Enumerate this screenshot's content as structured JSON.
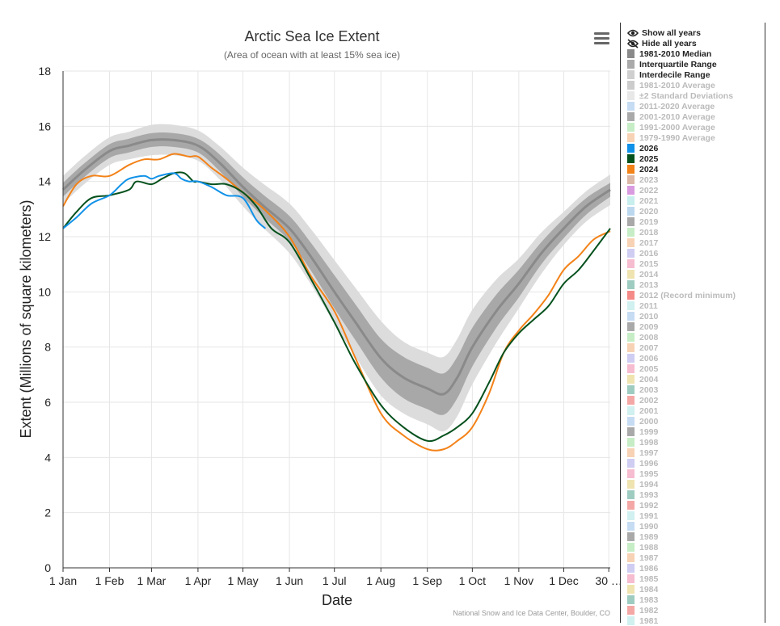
{
  "chart_data": {
    "type": "line",
    "title": "Arctic Sea Ice Extent",
    "subtitle": "(Area of ocean with at least 15% sea ice)",
    "xlabel": "Date",
    "ylabel": "Extent (Millions of square kilometers)",
    "credit": "National Snow and Ice Data Center, Boulder, CO",
    "ylim": [
      0,
      18
    ],
    "xlim": [
      1,
      366
    ],
    "grid": true,
    "legend_position": "right",
    "y_ticks": [
      "0",
      "2",
      "4",
      "6",
      "8",
      "10",
      "12",
      "14",
      "16",
      "18"
    ],
    "x_ticks": [
      {
        "day": 1,
        "label": "1 Jan"
      },
      {
        "day": 32,
        "label": "1 Feb"
      },
      {
        "day": 60,
        "label": "1 Mar"
      },
      {
        "day": 91,
        "label": "1 Apr"
      },
      {
        "day": 121,
        "label": "1 May"
      },
      {
        "day": 152,
        "label": "1 Jun"
      },
      {
        "day": 182,
        "label": "1 Jul"
      },
      {
        "day": 213,
        "label": "1 Aug"
      },
      {
        "day": 244,
        "label": "1 Sep"
      },
      {
        "day": 274,
        "label": "1 Oct"
      },
      {
        "day": 305,
        "label": "1 Nov"
      },
      {
        "day": 335,
        "label": "1 Dec"
      },
      {
        "day": 365,
        "label": "30 …"
      }
    ],
    "median_1981_2010": {
      "x": [
        1,
        15,
        32,
        45,
        60,
        75,
        91,
        105,
        121,
        135,
        152,
        166,
        182,
        196,
        213,
        228,
        244,
        255,
        264,
        274,
        290,
        305,
        320,
        335,
        350,
        366
      ],
      "y": [
        13.7,
        14.4,
        15.1,
        15.3,
        15.5,
        15.5,
        15.3,
        14.7,
        13.8,
        13.1,
        12.3,
        11.3,
        10.0,
        8.9,
        7.6,
        6.9,
        6.5,
        6.3,
        6.9,
        8.0,
        9.3,
        10.3,
        11.4,
        12.3,
        13.1,
        13.7
      ]
    },
    "interquartile_halfwidth": [
      0.25,
      0.25,
      0.25,
      0.25,
      0.25,
      0.25,
      0.25,
      0.3,
      0.35,
      0.4,
      0.45,
      0.5,
      0.6,
      0.65,
      0.7,
      0.75,
      0.75,
      0.75,
      0.75,
      0.7,
      0.6,
      0.5,
      0.4,
      0.35,
      0.3,
      0.25
    ],
    "interdecile_halfwidth": [
      0.5,
      0.5,
      0.5,
      0.5,
      0.55,
      0.55,
      0.55,
      0.6,
      0.7,
      0.8,
      0.9,
      1.0,
      1.15,
      1.25,
      1.35,
      1.3,
      1.3,
      1.35,
      1.4,
      1.35,
      1.15,
      0.9,
      0.75,
      0.6,
      0.55,
      0.55
    ],
    "series": [
      {
        "name": "2024",
        "color": "#f38218",
        "x": [
          1,
          10,
          20,
          32,
          45,
          55,
          65,
          75,
          85,
          91,
          100,
          110,
          121,
          135,
          152,
          166,
          182,
          196,
          213,
          228,
          244,
          255,
          264,
          274,
          285,
          295,
          305,
          315,
          325,
          335,
          345,
          355,
          366
        ],
        "y": [
          13.1,
          13.9,
          14.2,
          14.2,
          14.6,
          14.8,
          14.8,
          15.0,
          14.9,
          14.9,
          14.5,
          14.1,
          13.6,
          13.0,
          12.0,
          10.6,
          9.3,
          7.6,
          5.6,
          4.8,
          4.3,
          4.3,
          4.6,
          5.1,
          6.3,
          7.8,
          8.6,
          9.2,
          9.9,
          10.8,
          11.3,
          11.9,
          12.2
        ]
      },
      {
        "name": "2025",
        "color": "#05511d",
        "x": [
          1,
          10,
          20,
          32,
          45,
          50,
          60,
          67,
          75,
          82,
          88,
          91,
          100,
          110,
          121,
          130,
          140,
          152,
          166,
          182,
          196,
          213,
          228,
          244,
          255,
          264,
          274,
          285,
          295,
          305,
          315,
          325,
          335,
          345,
          355,
          366
        ],
        "y": [
          12.3,
          12.9,
          13.4,
          13.5,
          13.7,
          14.0,
          13.9,
          14.1,
          14.3,
          14.3,
          14.0,
          14.0,
          13.9,
          13.9,
          13.6,
          13.1,
          12.3,
          11.8,
          10.5,
          8.9,
          7.4,
          5.9,
          5.1,
          4.6,
          4.8,
          5.1,
          5.6,
          6.7,
          7.8,
          8.5,
          9.0,
          9.5,
          10.3,
          10.8,
          11.5,
          12.3
        ]
      },
      {
        "name": "2026",
        "color": "#1192e8",
        "x": [
          1,
          10,
          20,
          32,
          40,
          45,
          55,
          60,
          65,
          75,
          80,
          85,
          91,
          100,
          110,
          121,
          130,
          136
        ],
        "y": [
          12.3,
          12.7,
          13.2,
          13.5,
          13.9,
          14.1,
          14.2,
          14.1,
          14.2,
          14.3,
          14.1,
          14.0,
          14.0,
          13.8,
          13.5,
          13.4,
          12.6,
          12.3
        ]
      }
    ]
  },
  "legend": {
    "actions": [
      {
        "label": "Show all years",
        "icon": "eye-icon"
      },
      {
        "label": "Hide all years",
        "icon": "eye-off-icon"
      }
    ],
    "items": [
      {
        "label": "1981-2010 Median",
        "color": "#8a8a8a",
        "text_color": "#222222"
      },
      {
        "label": "Interquartile Range",
        "color": "#aaaaaa",
        "text_color": "#222222"
      },
      {
        "label": "Interdecile Range",
        "color": "#cfcfcf",
        "text_color": "#222222"
      },
      {
        "label": "1981-2010 Average",
        "color": "#cccccc",
        "text_color": "#bbbbbb"
      },
      {
        "label": "±2 Standard Deviations",
        "color": "#e8e8e8",
        "text_color": "#bbbbbb"
      },
      {
        "label": "2011-2020 Average",
        "color": "#c6dcf3",
        "text_color": "#bbbbbb"
      },
      {
        "label": "2001-2010 Average",
        "color": "#a9a9a9",
        "text_color": "#bbbbbb"
      },
      {
        "label": "1991-2000 Average",
        "color": "#c6edc6",
        "text_color": "#bbbbbb"
      },
      {
        "label": "1979-1990 Average",
        "color": "#f7d2b4",
        "text_color": "#bbbbbb"
      },
      {
        "label": "2026",
        "color": "#1192e8",
        "text_color": "#222222"
      },
      {
        "label": "2025",
        "color": "#05511d",
        "text_color": "#222222"
      },
      {
        "label": "2024",
        "color": "#f38218",
        "text_color": "#222222"
      },
      {
        "label": "2023",
        "color": "#dbb8a8",
        "text_color": "#bbbbbb"
      },
      {
        "label": "2022",
        "color": "#d99be0",
        "text_color": "#bbbbbb"
      },
      {
        "label": "2021",
        "color": "#c8eeee",
        "text_color": "#bbbbbb"
      },
      {
        "label": "2020",
        "color": "#bcd8ef",
        "text_color": "#bbbbbb"
      },
      {
        "label": "2019",
        "color": "#a9a9a9",
        "text_color": "#bbbbbb"
      },
      {
        "label": "2018",
        "color": "#c6edc6",
        "text_color": "#bbbbbb"
      },
      {
        "label": "2017",
        "color": "#f7d2b4",
        "text_color": "#bbbbbb"
      },
      {
        "label": "2016",
        "color": "#cfcdf2",
        "text_color": "#bbbbbb"
      },
      {
        "label": "2015",
        "color": "#f6bcd0",
        "text_color": "#bbbbbb"
      },
      {
        "label": "2014",
        "color": "#efe3b0",
        "text_color": "#bbbbbb"
      },
      {
        "label": "2013",
        "color": "#9fccc0",
        "text_color": "#bbbbbb"
      },
      {
        "label": "2012 (Record minimum)",
        "color": "#f48b88",
        "text_color": "#bbbbbb"
      },
      {
        "label": "2011",
        "color": "#d1f0f0",
        "text_color": "#bbbbbb"
      },
      {
        "label": "2010",
        "color": "#c6dcf3",
        "text_color": "#bbbbbb"
      },
      {
        "label": "2009",
        "color": "#a9a9a9",
        "text_color": "#bbbbbb"
      },
      {
        "label": "2008",
        "color": "#c6edc6",
        "text_color": "#bbbbbb"
      },
      {
        "label": "2007",
        "color": "#f7d2b4",
        "text_color": "#bbbbbb"
      },
      {
        "label": "2006",
        "color": "#cfcdf2",
        "text_color": "#bbbbbb"
      },
      {
        "label": "2005",
        "color": "#f6bcd0",
        "text_color": "#bbbbbb"
      },
      {
        "label": "2004",
        "color": "#efe3b0",
        "text_color": "#bbbbbb"
      },
      {
        "label": "2003",
        "color": "#9fccc0",
        "text_color": "#bbbbbb"
      },
      {
        "label": "2002",
        "color": "#f4a8a6",
        "text_color": "#bbbbbb"
      },
      {
        "label": "2001",
        "color": "#d1f0f0",
        "text_color": "#bbbbbb"
      },
      {
        "label": "2000",
        "color": "#c6dcf3",
        "text_color": "#bbbbbb"
      },
      {
        "label": "1999",
        "color": "#a9a9a9",
        "text_color": "#bbbbbb"
      },
      {
        "label": "1998",
        "color": "#c6edc6",
        "text_color": "#bbbbbb"
      },
      {
        "label": "1997",
        "color": "#f7d2b4",
        "text_color": "#bbbbbb"
      },
      {
        "label": "1996",
        "color": "#cfcdf2",
        "text_color": "#bbbbbb"
      },
      {
        "label": "1995",
        "color": "#f6bcd0",
        "text_color": "#bbbbbb"
      },
      {
        "label": "1994",
        "color": "#efe3b0",
        "text_color": "#bbbbbb"
      },
      {
        "label": "1993",
        "color": "#9fccc0",
        "text_color": "#bbbbbb"
      },
      {
        "label": "1992",
        "color": "#f4a8a6",
        "text_color": "#bbbbbb"
      },
      {
        "label": "1991",
        "color": "#d1f0f0",
        "text_color": "#bbbbbb"
      },
      {
        "label": "1990",
        "color": "#c6dcf3",
        "text_color": "#bbbbbb"
      },
      {
        "label": "1989",
        "color": "#a9a9a9",
        "text_color": "#bbbbbb"
      },
      {
        "label": "1988",
        "color": "#c6edc6",
        "text_color": "#bbbbbb"
      },
      {
        "label": "1987",
        "color": "#f7d2b4",
        "text_color": "#bbbbbb"
      },
      {
        "label": "1986",
        "color": "#cfcdf2",
        "text_color": "#bbbbbb"
      },
      {
        "label": "1985",
        "color": "#f6bcd0",
        "text_color": "#bbbbbb"
      },
      {
        "label": "1984",
        "color": "#efe3b0",
        "text_color": "#bbbbbb"
      },
      {
        "label": "1983",
        "color": "#9fccc0",
        "text_color": "#bbbbbb"
      },
      {
        "label": "1982",
        "color": "#f4a8a6",
        "text_color": "#bbbbbb"
      },
      {
        "label": "1981",
        "color": "#d1f0f0",
        "text_color": "#bbbbbb"
      }
    ]
  },
  "menu": {
    "icon": "hamburger-menu-icon"
  }
}
